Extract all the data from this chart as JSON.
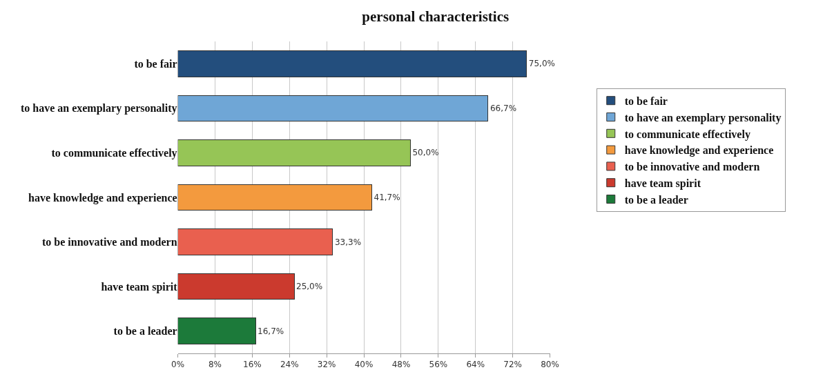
{
  "chart_data": {
    "type": "bar",
    "orientation": "horizontal",
    "title": "personal characteristics",
    "categories": [
      "to be fair",
      "to have an exemplary personality",
      "to communicate effectively",
      "have knowledge and experience",
      "to be innovative and modern",
      "have team spirit",
      "to be a leader"
    ],
    "series": [
      {
        "name": "to be fair",
        "color": "#234e7d",
        "values": [
          75.0,
          null,
          null,
          null,
          null,
          null,
          null
        ],
        "value_labels": [
          "75,0%",
          null,
          null,
          null,
          null,
          null,
          null
        ]
      },
      {
        "name": "to have an exemplary personality",
        "color": "#6fa6d6",
        "values": [
          null,
          66.7,
          null,
          null,
          null,
          null,
          null
        ],
        "value_labels": [
          null,
          "66,7%",
          null,
          null,
          null,
          null,
          null
        ]
      },
      {
        "name": "to communicate effectively",
        "color": "#96c556",
        "values": [
          null,
          null,
          50.0,
          null,
          null,
          null,
          null
        ],
        "value_labels": [
          null,
          null,
          "50,0%",
          null,
          null,
          null,
          null
        ]
      },
      {
        "name": "have knowledge and experience",
        "color": "#f39a3e",
        "values": [
          null,
          null,
          null,
          41.7,
          null,
          null,
          null
        ],
        "value_labels": [
          null,
          null,
          null,
          "41,7%",
          null,
          null,
          null
        ]
      },
      {
        "name": "to be innovative and modern",
        "color": "#e9604f",
        "values": [
          null,
          null,
          null,
          null,
          33.3,
          null,
          null
        ],
        "value_labels": [
          null,
          null,
          null,
          null,
          "33,3%",
          null,
          null
        ]
      },
      {
        "name": "have team spirit",
        "color": "#cb3a2e",
        "values": [
          null,
          null,
          null,
          null,
          null,
          25.0,
          null
        ],
        "value_labels": [
          null,
          null,
          null,
          null,
          null,
          "25,0%",
          null
        ]
      },
      {
        "name": "to be a leader",
        "color": "#1c7a3a",
        "values": [
          null,
          null,
          null,
          null,
          null,
          null,
          16.7
        ],
        "value_labels": [
          null,
          null,
          null,
          null,
          null,
          null,
          "16,7%"
        ]
      }
    ],
    "stacked": true,
    "xlim": [
      0,
      80
    ],
    "xticks": [
      {
        "value": 0,
        "label": "0%"
      },
      {
        "value": 8,
        "label": "8%"
      },
      {
        "value": 16,
        "label": "16%"
      },
      {
        "value": 24,
        "label": "24%"
      },
      {
        "value": 32,
        "label": "32%"
      },
      {
        "value": 40,
        "label": "40%"
      },
      {
        "value": 48,
        "label": "48%"
      },
      {
        "value": 56,
        "label": "56%"
      },
      {
        "value": 64,
        "label": "64%"
      },
      {
        "value": 72,
        "label": "72%"
      },
      {
        "value": 80,
        "label": "80%"
      }
    ],
    "grid": "x",
    "legend": "right"
  }
}
